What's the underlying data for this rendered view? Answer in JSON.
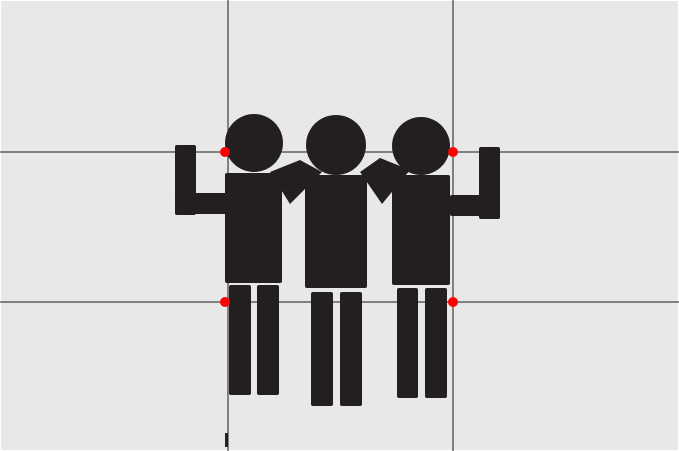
{
  "canvas": {
    "background_color": "#e8e8e8",
    "border_color": "#ffffff"
  },
  "grid": {
    "line_color": "#1c1a1b",
    "vertical_lines": 2,
    "horizontal_lines": 2
  },
  "figures": {
    "fill_color": "#231f20",
    "count": 3,
    "description_icon": "three-people-arms-around-shoulders-pictogram"
  },
  "markers": {
    "color": "#ff0000",
    "count": 4
  }
}
